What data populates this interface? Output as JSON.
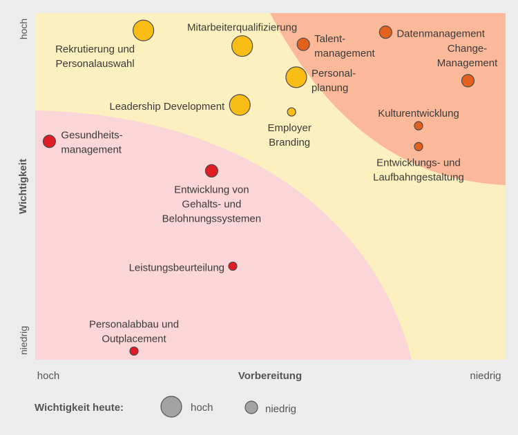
{
  "chart_data": {
    "type": "scatter",
    "xlabel": "Vorbereitung",
    "ylabel": "Wichtigkeit",
    "x_tick_left": "hoch",
    "x_tick_right": "niedrig",
    "y_tick_top": "hoch",
    "y_tick_bottom": "niedrig",
    "xlim": [
      0,
      100
    ],
    "ylim": [
      0,
      100
    ],
    "grid": false,
    "zones": {
      "pink": "#fbd6d8",
      "yellow": "#fcf1be",
      "orange": "#fbb99a"
    },
    "legend": {
      "title": "Wichtigkeit heute:",
      "high_label": "hoch",
      "low_label": "niedrig",
      "placement": "bottom-left"
    },
    "colors": {
      "yellow": "#f9bd16",
      "orange": "#e2621d",
      "red": "#e01c24",
      "legend_grey": "#a3a3a3"
    },
    "points": [
      {
        "name": "rekrutierung",
        "lines": [
          "Rekrutierung und",
          "Personalauswahl"
        ],
        "x": 23,
        "y": 95,
        "size": "large",
        "color": "yellow"
      },
      {
        "name": "mitarbeiterqualifizierung",
        "lines": [
          "Mitarbeiterqualifizierung"
        ],
        "x": 44,
        "y": 90.5,
        "size": "large",
        "color": "yellow"
      },
      {
        "name": "talentmanagement",
        "lines": [
          "Talent-",
          "management"
        ],
        "x": 57,
        "y": 91,
        "size": "medium",
        "color": "orange"
      },
      {
        "name": "datenmanagement",
        "lines": [
          "Datenmanagement"
        ],
        "x": 74.5,
        "y": 94.5,
        "size": "medium",
        "color": "orange"
      },
      {
        "name": "change-management",
        "lines": [
          "Change-",
          "Management"
        ],
        "x": 92,
        "y": 80.5,
        "size": "medium",
        "color": "orange"
      },
      {
        "name": "personalplanung",
        "lines": [
          "Personal-",
          "planung"
        ],
        "x": 55.5,
        "y": 81.5,
        "size": "large",
        "color": "yellow"
      },
      {
        "name": "leadership-development",
        "lines": [
          "Leadership Development"
        ],
        "x": 43.5,
        "y": 73.5,
        "size": "large",
        "color": "yellow"
      },
      {
        "name": "employer-branding",
        "lines": [
          "Employer",
          "Branding"
        ],
        "x": 54.5,
        "y": 71.5,
        "size": "small",
        "color": "yellow"
      },
      {
        "name": "kulturentwicklung",
        "lines": [
          "Kulturentwicklung"
        ],
        "x": 81.5,
        "y": 67.5,
        "size": "small",
        "color": "orange"
      },
      {
        "name": "laufbahngestaltung",
        "lines": [
          "Entwicklungs- und",
          "Laufbahngestaltung"
        ],
        "x": 81.5,
        "y": 61.5,
        "size": "small",
        "color": "orange"
      },
      {
        "name": "gesundheitsmanagement",
        "lines": [
          "Gesundheits-",
          "management"
        ],
        "x": 3,
        "y": 63,
        "size": "medium",
        "color": "red"
      },
      {
        "name": "gehaltssysteme",
        "lines": [
          "Entwicklung von",
          "Gehalts- und",
          "Belohnungssystemen"
        ],
        "x": 37.5,
        "y": 54.5,
        "size": "medium",
        "color": "red"
      },
      {
        "name": "leistungsbeurteilung",
        "lines": [
          "Leistungsbeurteilung"
        ],
        "x": 42,
        "y": 27,
        "size": "small",
        "color": "red"
      },
      {
        "name": "personalabbau",
        "lines": [
          "Personalabbau und",
          "Outplacement"
        ],
        "x": 21,
        "y": 2.5,
        "size": "small",
        "color": "red"
      }
    ]
  }
}
